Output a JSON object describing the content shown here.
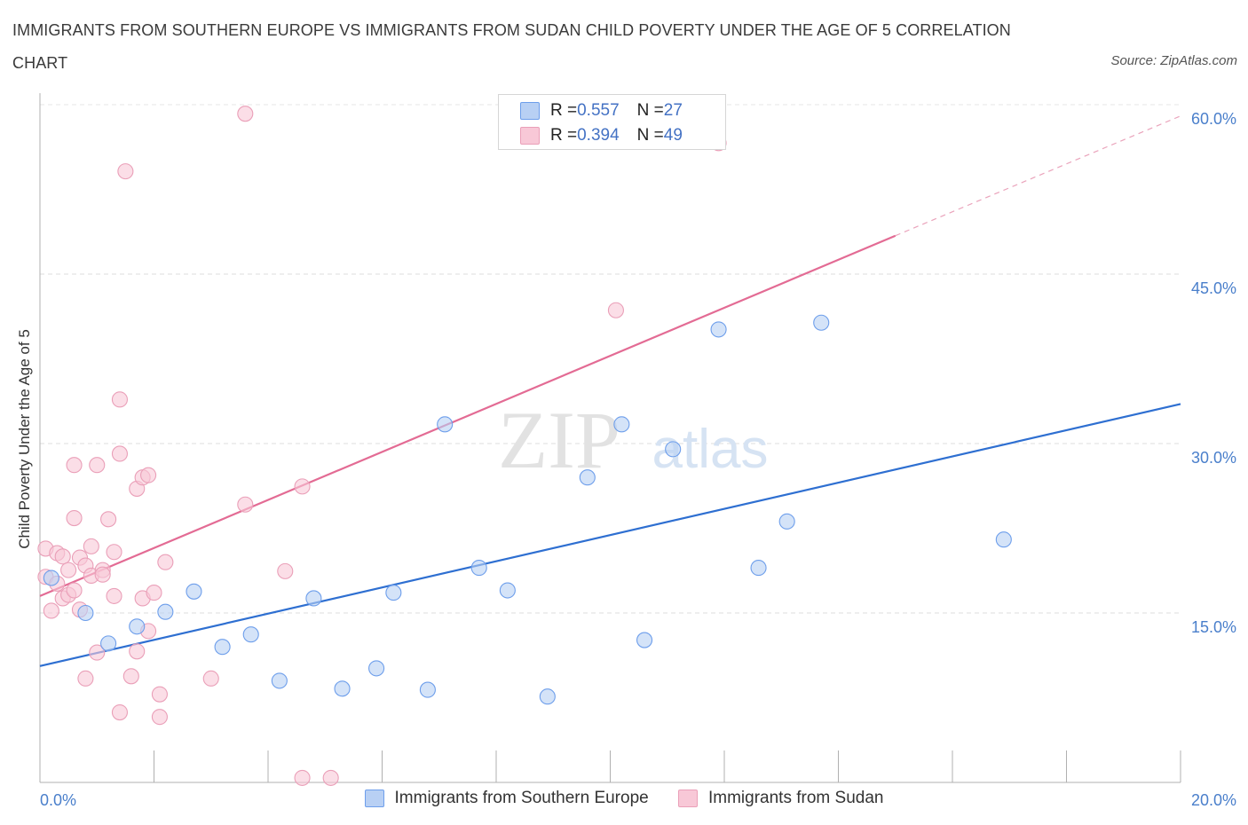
{
  "title": "IMMIGRANTS FROM SOUTHERN EUROPE VS IMMIGRANTS FROM SUDAN CHILD POVERTY UNDER THE AGE OF 5 CORRELATION CHART",
  "source": "Source: ZipAtlas.com",
  "watermark": {
    "zip": "ZIP",
    "atlas": "atlas"
  },
  "legend_top": {
    "rows": [
      {
        "r_label": "R = ",
        "r_value": "0.557",
        "n_label": "N = ",
        "n_value": "27"
      },
      {
        "r_label": "R = ",
        "r_value": "0.394",
        "n_label": "N = ",
        "n_value": "49"
      }
    ]
  },
  "chart_data": {
    "type": "scatter",
    "title": "IMMIGRANTS FROM SOUTHERN EUROPE VS IMMIGRANTS FROM SUDAN CHILD POVERTY UNDER THE AGE OF 5 CORRELATION CHART",
    "xlabel": "",
    "ylabel": "Child Poverty Under the Age of 5",
    "xlim": [
      0,
      20
    ],
    "ylim": [
      0,
      60
    ],
    "x_ticks": [
      0,
      2,
      4,
      6,
      8,
      10,
      12,
      14,
      16,
      18,
      20
    ],
    "x_tick_labels": [
      {
        "value": 0,
        "label": "0.0%"
      },
      {
        "value": 20,
        "label": "20.0%"
      }
    ],
    "y_ticks": [
      {
        "value": 15,
        "label": "15.0%"
      },
      {
        "value": 30,
        "label": "30.0%"
      },
      {
        "value": 45,
        "label": "45.0%"
      },
      {
        "value": 60,
        "label": "60.0%"
      }
    ],
    "grid": true,
    "legend_position": "bottom",
    "series": [
      {
        "name": "Immigrants from Southern Europe",
        "color": "#6d9eeb",
        "fill": "#b8d0f4",
        "line_color": "#2e6fd1",
        "R": 0.557,
        "N": 27,
        "trend": {
          "x": [
            0,
            20
          ],
          "y": [
            10.3,
            33.5
          ]
        },
        "points": [
          [
            0.2,
            18.1
          ],
          [
            0.8,
            15.0
          ],
          [
            1.2,
            12.3
          ],
          [
            1.7,
            13.8
          ],
          [
            2.2,
            15.1
          ],
          [
            2.7,
            16.9
          ],
          [
            3.2,
            12.0
          ],
          [
            3.7,
            13.1
          ],
          [
            4.2,
            9.0
          ],
          [
            4.8,
            16.3
          ],
          [
            5.3,
            8.3
          ],
          [
            5.9,
            10.1
          ],
          [
            6.2,
            16.8
          ],
          [
            6.8,
            8.2
          ],
          [
            7.1,
            31.7
          ],
          [
            7.7,
            19.0
          ],
          [
            8.2,
            17.0
          ],
          [
            8.9,
            7.6
          ],
          [
            9.6,
            27.0
          ],
          [
            10.2,
            31.7
          ],
          [
            10.6,
            12.6
          ],
          [
            11.1,
            29.5
          ],
          [
            11.9,
            40.1
          ],
          [
            12.6,
            19.0
          ],
          [
            13.1,
            23.1
          ],
          [
            13.7,
            40.7
          ],
          [
            16.9,
            21.5
          ]
        ]
      },
      {
        "name": "Immigrants from Sudan",
        "color": "#ea9fb8",
        "fill": "#f8c8d7",
        "line_color": "#e36b94",
        "R": 0.394,
        "N": 49,
        "trend": {
          "x": [
            0,
            15
          ],
          "y": [
            16.5,
            48.4
          ],
          "dash_to": {
            "x": 20,
            "y": 59.0
          }
        },
        "points": [
          [
            0.1,
            20.7
          ],
          [
            0.1,
            18.2
          ],
          [
            0.2,
            15.2
          ],
          [
            0.3,
            20.3
          ],
          [
            0.3,
            17.6
          ],
          [
            0.4,
            16.3
          ],
          [
            0.4,
            20.0
          ],
          [
            0.5,
            16.6
          ],
          [
            0.5,
            18.8
          ],
          [
            0.6,
            17.0
          ],
          [
            0.6,
            23.4
          ],
          [
            0.6,
            28.1
          ],
          [
            0.7,
            15.3
          ],
          [
            0.7,
            19.9
          ],
          [
            0.8,
            19.2
          ],
          [
            0.8,
            9.2
          ],
          [
            0.9,
            18.3
          ],
          [
            0.9,
            20.9
          ],
          [
            1.0,
            28.1
          ],
          [
            1.0,
            11.5
          ],
          [
            1.1,
            18.8
          ],
          [
            1.1,
            18.4
          ],
          [
            1.2,
            23.3
          ],
          [
            1.3,
            16.5
          ],
          [
            1.3,
            20.4
          ],
          [
            1.4,
            6.2
          ],
          [
            1.4,
            29.1
          ],
          [
            1.4,
            33.9
          ],
          [
            1.5,
            54.1
          ],
          [
            1.6,
            9.4
          ],
          [
            1.7,
            26.0
          ],
          [
            1.7,
            11.6
          ],
          [
            1.8,
            16.3
          ],
          [
            1.8,
            27.0
          ],
          [
            1.9,
            13.4
          ],
          [
            1.9,
            27.2
          ],
          [
            2.0,
            16.8
          ],
          [
            2.1,
            7.8
          ],
          [
            2.1,
            5.8
          ],
          [
            2.2,
            19.5
          ],
          [
            3.0,
            9.2
          ],
          [
            3.6,
            24.6
          ],
          [
            3.6,
            59.2
          ],
          [
            4.3,
            18.7
          ],
          [
            4.6,
            26.2
          ],
          [
            4.6,
            0.4
          ],
          [
            5.1,
            0.4
          ],
          [
            10.1,
            41.8
          ],
          [
            11.9,
            56.6
          ]
        ]
      }
    ]
  }
}
